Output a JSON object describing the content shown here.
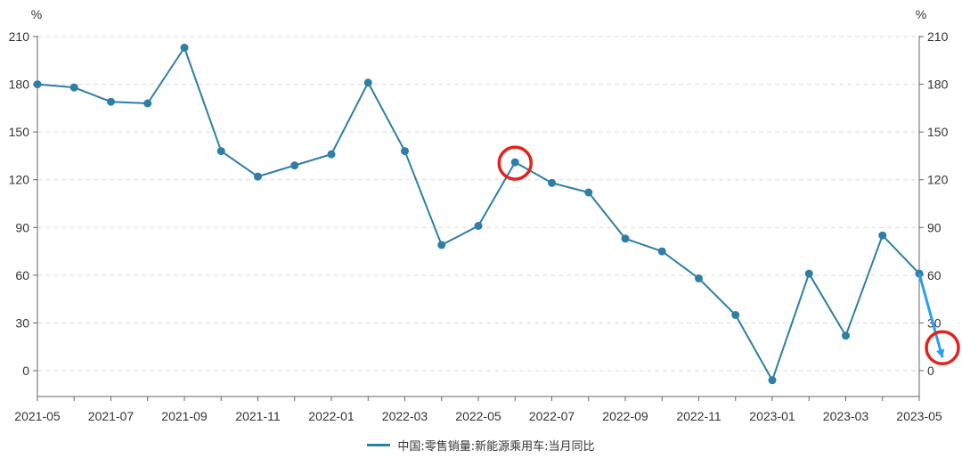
{
  "colors": {
    "series": "#2e7ea6",
    "annotation_circle": "#e3221c",
    "annotation_arrow": "#2a9df4",
    "grid": "#d9d9d9",
    "axis": "#666666"
  },
  "chart_data": {
    "type": "line",
    "left_unit": "%",
    "right_unit": "%",
    "ylim": [
      -10,
      210
    ],
    "yticks": [
      0,
      30,
      60,
      90,
      120,
      150,
      180,
      210
    ],
    "xtick_labels": [
      "2021-05",
      "2021-07",
      "2021-09",
      "2021-11",
      "2022-01",
      "2022-03",
      "2022-05",
      "2022-07",
      "2022-09",
      "2022-11",
      "2023-01",
      "2023-03",
      "2023-05"
    ],
    "x": [
      "2021-05",
      "2021-06",
      "2021-07",
      "2021-08",
      "2021-09",
      "2021-10",
      "2021-11",
      "2021-12",
      "2022-01",
      "2022-02",
      "2022-03",
      "2022-04",
      "2022-05",
      "2022-06",
      "2022-07",
      "2022-08",
      "2022-09",
      "2022-10",
      "2022-11",
      "2022-12",
      "2023-01",
      "2023-02",
      "2023-03",
      "2023-04",
      "2023-05"
    ],
    "series": [
      {
        "name": "中国:零售销量:新能源乘用车:当月同比",
        "values": [
          180,
          178,
          169,
          168,
          203,
          138,
          122,
          129,
          136,
          181,
          138,
          79,
          91,
          131,
          118,
          112,
          83,
          75,
          58,
          35,
          -6,
          61,
          22,
          85,
          61
        ]
      }
    ],
    "grid": "horizontal dashed",
    "legend_position": "bottom-center",
    "annotations": [
      {
        "type": "circle",
        "at": "2022-06",
        "value": 131
      },
      {
        "type": "arrow",
        "from": "2023-05",
        "from_value": 61,
        "to_value": 15
      },
      {
        "type": "circle",
        "at": "right-axis",
        "value": 15
      }
    ]
  }
}
